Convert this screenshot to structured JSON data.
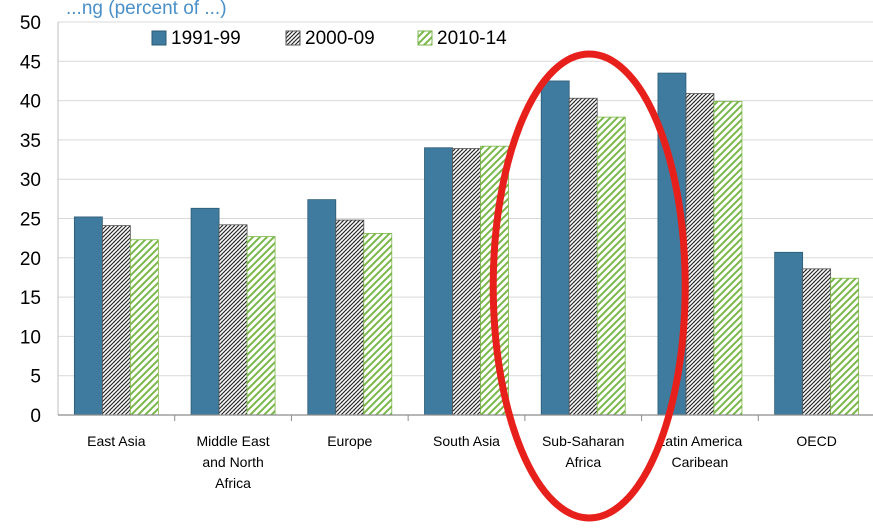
{
  "chart_data": {
    "type": "bar",
    "title_fragment": "...ng (percent of ...)",
    "categories": [
      "East Asia",
      "Middle East and North Africa",
      "Europe",
      "South Asia",
      "Sub-Saharan Africa",
      "Latin America Caribean",
      "OECD"
    ],
    "category_labels": [
      [
        "East Asia"
      ],
      [
        "Middle East",
        "and North",
        "Africa"
      ],
      [
        "Europe"
      ],
      [
        "South Asia"
      ],
      [
        "Sub-Saharan",
        "Africa"
      ],
      [
        "Latin America",
        "Caribean"
      ],
      [
        "OECD"
      ]
    ],
    "series": [
      {
        "name": "1991-99",
        "values": [
          25.2,
          26.3,
          27.4,
          34.0,
          42.5,
          43.5,
          20.7
        ]
      },
      {
        "name": "2000-09",
        "values": [
          24.1,
          24.2,
          24.8,
          33.9,
          40.3,
          40.9,
          18.6
        ]
      },
      {
        "name": "2010-14",
        "values": [
          22.3,
          22.7,
          23.1,
          34.2,
          37.9,
          39.9,
          17.4
        ]
      }
    ],
    "ylim": [
      0,
      50
    ],
    "yticks": [
      0,
      5,
      10,
      15,
      20,
      25,
      30,
      35,
      40,
      45,
      50
    ],
    "grid": true,
    "legend_position": "top",
    "colors": {
      "series1": "#3f7b9e",
      "series2_pattern": "#222222",
      "series3_pattern": "#7ab648",
      "grid": "#d9d9d9",
      "highlight": "#e8201b"
    },
    "highlight": {
      "category": "Sub-Saharan Africa",
      "shape": "ellipse"
    }
  }
}
